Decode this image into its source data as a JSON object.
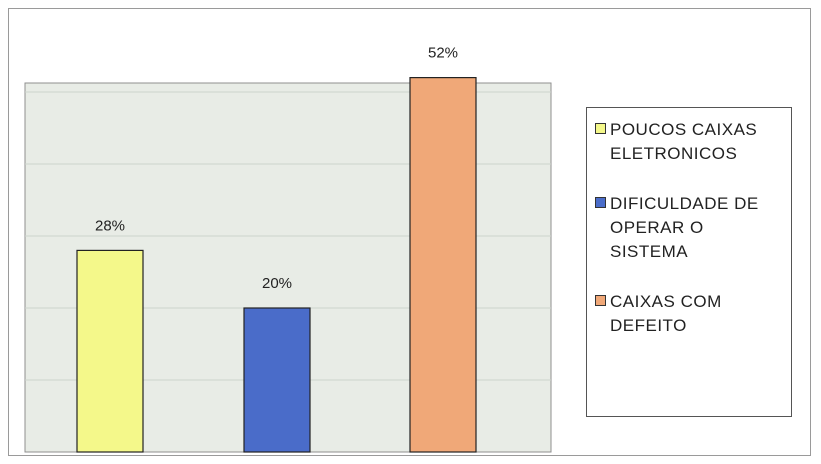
{
  "chart_data": {
    "type": "bar",
    "title": "",
    "xlabel": "",
    "ylabel": "",
    "ylim": [
      0,
      60
    ],
    "grid": true,
    "legend_position": "right",
    "categories": [
      "POUCOS CAIXAS\nELETRONICOS",
      "DIFICULDADE DE\nOPERAR O\nSISTEMA",
      "CAIXAS COM\nDEFEITO"
    ],
    "values": [
      28,
      20,
      52
    ],
    "value_labels": [
      "28%",
      "20%",
      "52%"
    ],
    "colors": [
      "#f4f88a",
      "#4a6cc9",
      "#f0a878"
    ],
    "plot_background": "#e8ece6"
  }
}
